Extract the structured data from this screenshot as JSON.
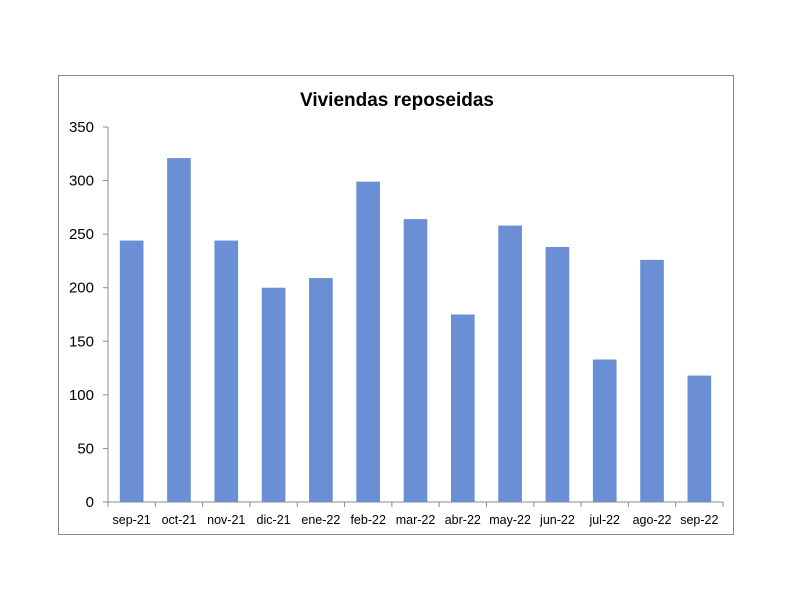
{
  "chart_data": {
    "type": "bar",
    "title": "Viviendas reposeidas",
    "xlabel": "",
    "ylabel": "",
    "categories": [
      "sep-21",
      "oct-21",
      "nov-21",
      "dic-21",
      "ene-22",
      "feb-22",
      "mar-22",
      "abr-22",
      "may-22",
      "jun-22",
      "jul-22",
      "ago-22",
      "sep-22"
    ],
    "values": [
      244,
      321,
      244,
      200,
      209,
      299,
      264,
      175,
      258,
      238,
      133,
      226,
      118
    ],
    "ylim": [
      0,
      350
    ],
    "yticks": [
      0,
      50,
      100,
      150,
      200,
      250,
      300,
      350
    ],
    "grid": false,
    "legend": "none",
    "bar_color": "#6a8fd4"
  }
}
